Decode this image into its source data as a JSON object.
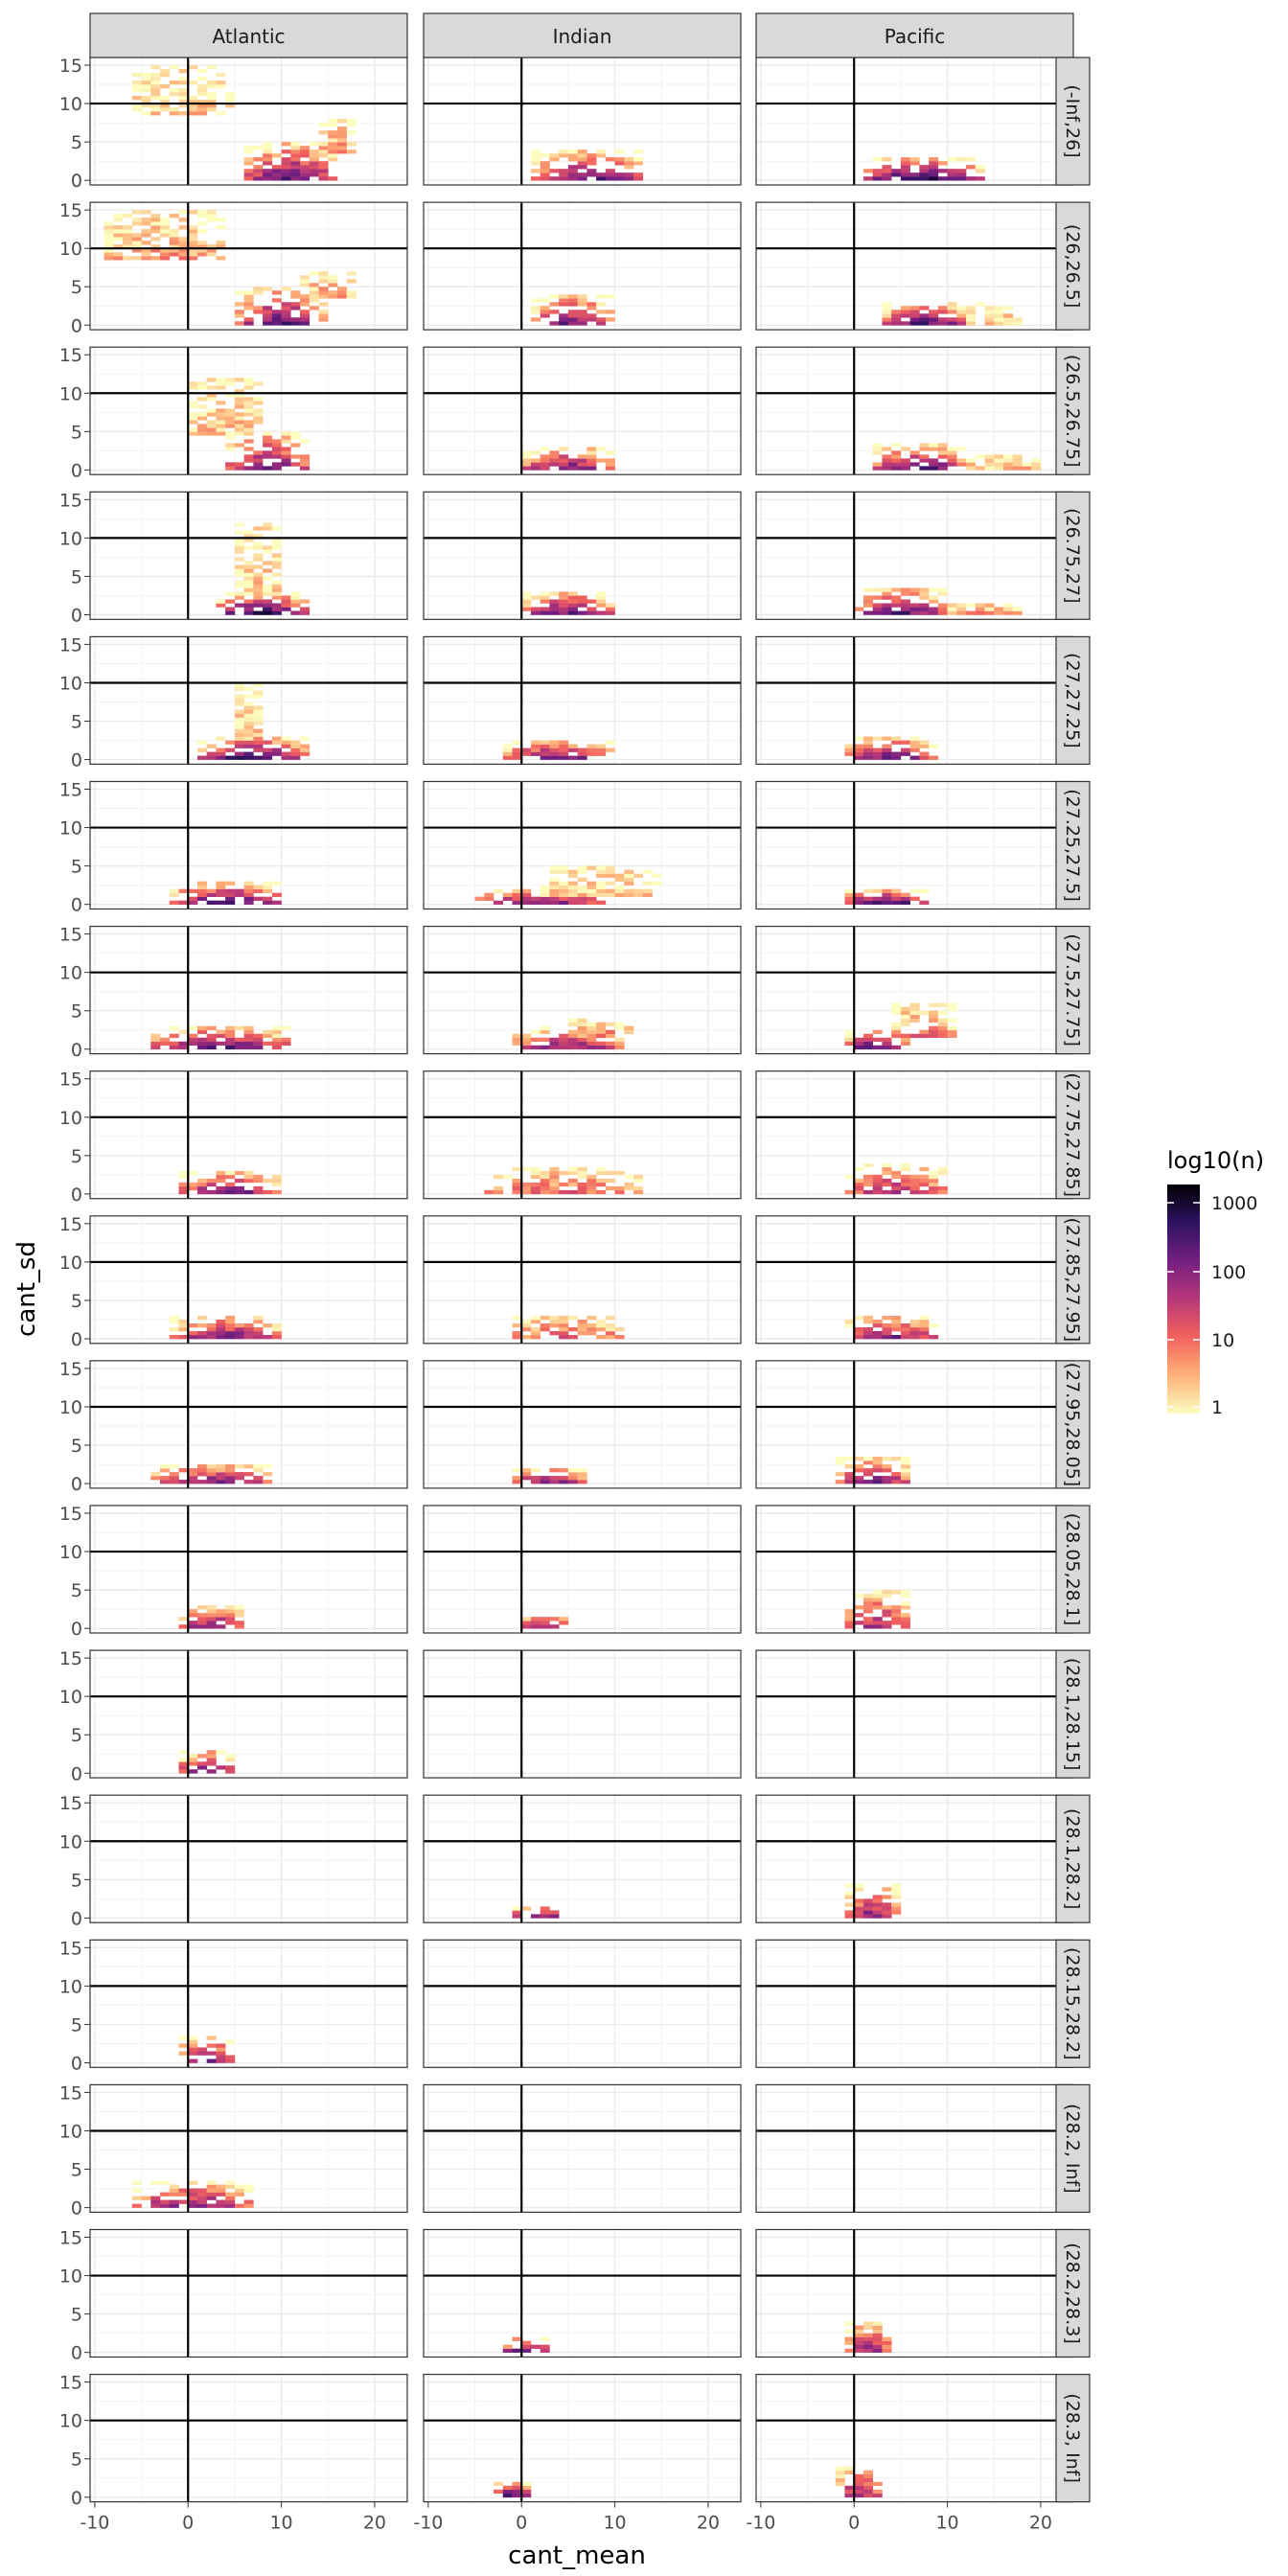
{
  "chart_data": {
    "type": "heatmap",
    "facet_grid": {
      "columns": [
        "Atlantic",
        "Indian",
        "Pacific"
      ],
      "rows": [
        "(-Inf,26]",
        "(26,26.5]",
        "(26.5,26.75]",
        "(26.75,27]",
        "(27,27.25]",
        "(27.25,27.5]",
        "(27.5,27.75]",
        "(27.75,27.85]",
        "(27.85,27.95]",
        "(27.95,28.05]",
        "(28.05,28.1]",
        "(28.1,28.15]",
        "(28.1,28.2]",
        "(28.15,28.2]",
        "(28.2, Inf]",
        "(28.2,28.3]",
        "(28.3, Inf]"
      ]
    },
    "xlabel": "cant_mean",
    "ylabel": "cant_sd",
    "x_ticks": [
      -10,
      0,
      10,
      20
    ],
    "y_ticks": [
      0,
      5,
      10,
      15
    ],
    "xlim": [
      -10.5,
      23.5
    ],
    "ylim": [
      -0.6,
      16
    ],
    "reference_lines": {
      "x": 0,
      "y": 10
    },
    "grid": true,
    "legend": {
      "title": "log10(n)",
      "breaks": [
        "1",
        "10",
        "100",
        "1000"
      ],
      "placement": "right",
      "scale": "log10",
      "colors": [
        "#fcfdbf",
        "#feb078",
        "#f1605d",
        "#b73779",
        "#721f81",
        "#2c115f",
        "#000004"
      ]
    },
    "bin_width": {
      "x": 1,
      "y": 0.5
    },
    "clusters": [
      {
        "row": 0,
        "col": 0,
        "x": [
          6,
          16
        ],
        "y": [
          0.5,
          5
        ],
        "intensity": 1.8
      },
      {
        "row": 0,
        "col": 0,
        "x": [
          -6,
          5
        ],
        "y": [
          9,
          15
        ],
        "intensity": 0.3
      },
      {
        "row": 0,
        "col": 0,
        "x": [
          14,
          18
        ],
        "y": [
          4,
          8
        ],
        "intensity": 0.6
      },
      {
        "row": 0,
        "col": 1,
        "x": [
          1,
          13
        ],
        "y": [
          0.5,
          4
        ],
        "intensity": 1.7
      },
      {
        "row": 0,
        "col": 2,
        "x": [
          1,
          14
        ],
        "y": [
          0.5,
          3
        ],
        "intensity": 2.0
      },
      {
        "row": 1,
        "col": 0,
        "x": [
          5,
          15
        ],
        "y": [
          0.5,
          5
        ],
        "intensity": 1.8
      },
      {
        "row": 1,
        "col": 0,
        "x": [
          -9,
          4
        ],
        "y": [
          9,
          15
        ],
        "intensity": 0.6
      },
      {
        "row": 1,
        "col": 0,
        "x": [
          12,
          18
        ],
        "y": [
          4,
          7
        ],
        "intensity": 0.5
      },
      {
        "row": 1,
        "col": 1,
        "x": [
          1,
          10
        ],
        "y": [
          0.5,
          4
        ],
        "intensity": 1.6
      },
      {
        "row": 1,
        "col": 2,
        "x": [
          3,
          12
        ],
        "y": [
          0.5,
          3
        ],
        "intensity": 1.7
      },
      {
        "row": 1,
        "col": 2,
        "x": [
          12,
          18
        ],
        "y": [
          0.5,
          3
        ],
        "intensity": 0.3
      },
      {
        "row": 2,
        "col": 0,
        "x": [
          4,
          13
        ],
        "y": [
          0.5,
          5
        ],
        "intensity": 1.7
      },
      {
        "row": 2,
        "col": 0,
        "x": [
          0,
          8
        ],
        "y": [
          5,
          12
        ],
        "intensity": 0.4
      },
      {
        "row": 2,
        "col": 1,
        "x": [
          0,
          10
        ],
        "y": [
          0.5,
          3
        ],
        "intensity": 1.5
      },
      {
        "row": 2,
        "col": 2,
        "x": [
          2,
          12
        ],
        "y": [
          0.5,
          3.5
        ],
        "intensity": 1.7
      },
      {
        "row": 2,
        "col": 2,
        "x": [
          12,
          20
        ],
        "y": [
          0.5,
          2
        ],
        "intensity": 0.3
      },
      {
        "row": 3,
        "col": 0,
        "x": [
          3,
          13
        ],
        "y": [
          0.5,
          3
        ],
        "intensity": 1.9
      },
      {
        "row": 3,
        "col": 0,
        "x": [
          5,
          10
        ],
        "y": [
          3,
          12
        ],
        "intensity": 0.3
      },
      {
        "row": 3,
        "col": 1,
        "x": [
          0,
          10
        ],
        "y": [
          0.5,
          3
        ],
        "intensity": 1.6
      },
      {
        "row": 3,
        "col": 2,
        "x": [
          0,
          10
        ],
        "y": [
          0.5,
          3.5
        ],
        "intensity": 1.7
      },
      {
        "row": 3,
        "col": 2,
        "x": [
          10,
          18
        ],
        "y": [
          0.5,
          1.5
        ],
        "intensity": 0.4
      },
      {
        "row": 4,
        "col": 0,
        "x": [
          1,
          13
        ],
        "y": [
          0.5,
          3
        ],
        "intensity": 1.8
      },
      {
        "row": 4,
        "col": 0,
        "x": [
          5,
          8
        ],
        "y": [
          3,
          10
        ],
        "intensity": 0.4
      },
      {
        "row": 4,
        "col": 1,
        "x": [
          -2,
          10
        ],
        "y": [
          0.5,
          2.5
        ],
        "intensity": 1.5
      },
      {
        "row": 4,
        "col": 2,
        "x": [
          -1,
          9
        ],
        "y": [
          0.5,
          3
        ],
        "intensity": 1.6
      },
      {
        "row": 5,
        "col": 0,
        "x": [
          -2,
          11
        ],
        "y": [
          0.5,
          3
        ],
        "intensity": 1.7
      },
      {
        "row": 5,
        "col": 1,
        "x": [
          -5,
          9
        ],
        "y": [
          0.5,
          2
        ],
        "intensity": 1.3
      },
      {
        "row": 5,
        "col": 1,
        "x": [
          2,
          15
        ],
        "y": [
          1.5,
          5
        ],
        "intensity": 0.3
      },
      {
        "row": 5,
        "col": 2,
        "x": [
          -1,
          8
        ],
        "y": [
          0.5,
          2
        ],
        "intensity": 1.6
      },
      {
        "row": 6,
        "col": 0,
        "x": [
          -4,
          11
        ],
        "y": [
          0.5,
          3
        ],
        "intensity": 1.7
      },
      {
        "row": 6,
        "col": 1,
        "x": [
          -1,
          11
        ],
        "y": [
          0.5,
          3
        ],
        "intensity": 1.4
      },
      {
        "row": 6,
        "col": 1,
        "x": [
          5,
          12
        ],
        "y": [
          2,
          4
        ],
        "intensity": 0.6
      },
      {
        "row": 6,
        "col": 2,
        "x": [
          -1,
          6
        ],
        "y": [
          0.5,
          2.5
        ],
        "intensity": 1.7
      },
      {
        "row": 6,
        "col": 2,
        "x": [
          4,
          11
        ],
        "y": [
          2,
          6
        ],
        "intensity": 0.8
      },
      {
        "row": 7,
        "col": 0,
        "x": [
          -1,
          10
        ],
        "y": [
          0.5,
          3
        ],
        "intensity": 1.5
      },
      {
        "row": 7,
        "col": 1,
        "x": [
          -4,
          13
        ],
        "y": [
          0.5,
          3.5
        ],
        "intensity": 0.8
      },
      {
        "row": 7,
        "col": 2,
        "x": [
          -1,
          10
        ],
        "y": [
          0.5,
          4
        ],
        "intensity": 1.3
      },
      {
        "row": 8,
        "col": 0,
        "x": [
          -2,
          10
        ],
        "y": [
          0.5,
          3
        ],
        "intensity": 1.5
      },
      {
        "row": 8,
        "col": 1,
        "x": [
          -1,
          11
        ],
        "y": [
          0.5,
          3
        ],
        "intensity": 0.9
      },
      {
        "row": 8,
        "col": 2,
        "x": [
          -1,
          9
        ],
        "y": [
          0.5,
          3
        ],
        "intensity": 1.4
      },
      {
        "row": 9,
        "col": 0,
        "x": [
          -4,
          9
        ],
        "y": [
          0.5,
          2.5
        ],
        "intensity": 1.4
      },
      {
        "row": 9,
        "col": 1,
        "x": [
          -1,
          7
        ],
        "y": [
          0.5,
          2
        ],
        "intensity": 1.3
      },
      {
        "row": 9,
        "col": 2,
        "x": [
          -2,
          6
        ],
        "y": [
          0.5,
          3.5
        ],
        "intensity": 1.5
      },
      {
        "row": 10,
        "col": 0,
        "x": [
          -1,
          6
        ],
        "y": [
          0.5,
          3
        ],
        "intensity": 1.5
      },
      {
        "row": 10,
        "col": 1,
        "x": [
          -1,
          5
        ],
        "y": [
          0.5,
          1.5
        ],
        "intensity": 1.2
      },
      {
        "row": 10,
        "col": 2,
        "x": [
          -1,
          6
        ],
        "y": [
          0.5,
          5
        ],
        "intensity": 1.4
      },
      {
        "row": 11,
        "col": 0,
        "x": [
          -1,
          5
        ],
        "y": [
          0.5,
          3
        ],
        "intensity": 1.6
      },
      {
        "row": 12,
        "col": 1,
        "x": [
          -1,
          4
        ],
        "y": [
          0.5,
          1.5
        ],
        "intensity": 1.3
      },
      {
        "row": 12,
        "col": 2,
        "x": [
          -1,
          5
        ],
        "y": [
          0.5,
          4.5
        ],
        "intensity": 1.5
      },
      {
        "row": 13,
        "col": 0,
        "x": [
          -1,
          5
        ],
        "y": [
          0.5,
          3.5
        ],
        "intensity": 1.7
      },
      {
        "row": 14,
        "col": 0,
        "x": [
          -6,
          7
        ],
        "y": [
          0.5,
          3.5
        ],
        "intensity": 1.5
      },
      {
        "row": 15,
        "col": 1,
        "x": [
          -2,
          3
        ],
        "y": [
          0.5,
          2
        ],
        "intensity": 1.5
      },
      {
        "row": 15,
        "col": 2,
        "x": [
          -1,
          4
        ],
        "y": [
          0.5,
          4
        ],
        "intensity": 1.4
      },
      {
        "row": 16,
        "col": 1,
        "x": [
          -3,
          1
        ],
        "y": [
          0.5,
          2
        ],
        "intensity": 1.6
      },
      {
        "row": 16,
        "col": 2,
        "x": [
          -2,
          3
        ],
        "y": [
          0.5,
          4
        ],
        "intensity": 1.4
      }
    ]
  }
}
